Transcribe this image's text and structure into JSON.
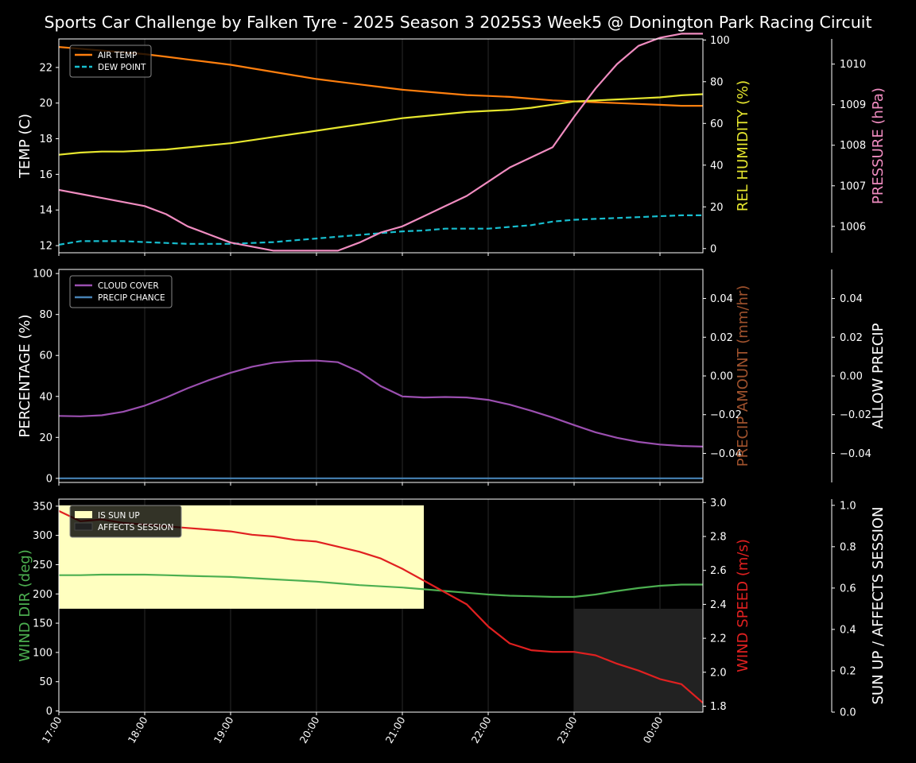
{
  "chart_data": {
    "title": "Sports Car Challenge by Falken Tyre - 2025 Season 3 2025S3 Week5 @ Donington Park Racing Circuit",
    "x_ticks": [
      "17:00",
      "18:00",
      "19:00",
      "20:00",
      "21:00",
      "22:00",
      "23:00",
      "00:00"
    ],
    "x_hours": [
      0,
      0.25,
      0.5,
      0.75,
      1,
      1.25,
      1.5,
      1.75,
      2,
      2.25,
      2.5,
      2.75,
      3,
      3.25,
      3.5,
      3.75,
      4,
      4.25,
      4.5,
      4.75,
      5,
      5.25,
      5.5,
      5.75,
      6,
      6.25,
      6.5,
      6.75,
      7,
      7.25,
      7.5
    ],
    "panels": [
      {
        "id": "temp",
        "type": "line",
        "left_axis": {
          "label": "TEMP (C)",
          "range": [
            11.6,
            23.6
          ],
          "ticks": [
            12,
            14,
            16,
            18,
            20,
            22
          ],
          "color": "#ffffff"
        },
        "right_axis": {
          "label": "REL HUMIDITY (%)",
          "range": [
            -2,
            100.5
          ],
          "ticks": [
            0,
            20,
            40,
            60,
            80,
            100
          ],
          "color": "#e6e62e"
        },
        "far_axis": {
          "label": "PRESSURE (hPa)",
          "range": [
            1005.35,
            1010.62
          ],
          "ticks": [
            1006,
            1007,
            1008,
            1009,
            1010
          ],
          "color": "#f08cc0"
        },
        "legend": {
          "placement": "top-left",
          "entries": [
            {
              "label": "AIR TEMP",
              "color": "#ff7f0e",
              "dash": false
            },
            {
              "label": "DEW POINT",
              "color": "#17becf",
              "dash": true
            }
          ]
        },
        "series": [
          {
            "name": "AIR TEMP",
            "axis": "left",
            "color": "#ff7f0e",
            "dash": false,
            "values": [
              23.15,
              23.05,
              22.95,
              22.85,
              22.75,
              22.6,
              22.45,
              22.3,
              22.15,
              21.95,
              21.75,
              21.55,
              21.35,
              21.2,
              21.05,
              20.9,
              20.75,
              20.65,
              20.55,
              20.45,
              20.4,
              20.35,
              20.25,
              20.15,
              20.1,
              20.05,
              20.0,
              19.95,
              19.9,
              19.85,
              19.85
            ]
          },
          {
            "name": "DEW POINT",
            "axis": "left",
            "color": "#17becf",
            "dash": true,
            "values": [
              12.05,
              12.25,
              12.25,
              12.25,
              12.2,
              12.15,
              12.1,
              12.1,
              12.1,
              12.15,
              12.2,
              12.3,
              12.4,
              12.5,
              12.6,
              12.7,
              12.8,
              12.85,
              12.95,
              12.95,
              12.95,
              13.05,
              13.15,
              13.35,
              13.45,
              13.5,
              13.55,
              13.6,
              13.65,
              13.7,
              13.7
            ]
          },
          {
            "name": "REL HUMIDITY",
            "axis": "right",
            "color": "#e6e62e",
            "dash": false,
            "values": [
              45,
              46,
              46.5,
              46.5,
              47,
              47.5,
              48.5,
              49.5,
              50.5,
              52,
              53.5,
              55,
              56.5,
              58,
              59.5,
              61,
              62.5,
              63.5,
              64.5,
              65.5,
              66,
              66.5,
              67.5,
              69,
              70.5,
              71,
              71.5,
              72,
              72.5,
              73.5,
              74
            ]
          },
          {
            "name": "PRESSURE",
            "axis": "far",
            "color": "#f08cc0",
            "dash": false,
            "values": [
              1006.9,
              1006.8,
              1006.7,
              1006.6,
              1006.5,
              1006.3,
              1006.0,
              1005.8,
              1005.6,
              1005.5,
              1005.4,
              1005.4,
              1005.4,
              1005.4,
              1005.6,
              1005.85,
              1006.0,
              1006.25,
              1006.5,
              1006.75,
              1007.1,
              1007.45,
              1007.7,
              1007.95,
              1008.7,
              1009.4,
              1010.0,
              1010.45,
              1010.65,
              1010.75,
              1010.75
            ]
          }
        ]
      },
      {
        "id": "precip",
        "type": "line",
        "left_axis": {
          "label": "PERCENTAGE (%)",
          "range": [
            -2,
            102
          ],
          "ticks": [
            0,
            20,
            40,
            60,
            80,
            100
          ],
          "color": "#ffffff"
        },
        "right_axis": {
          "label": "PRECIP AMOUNT (mm/hr)",
          "range": [
            -0.055,
            0.055
          ],
          "ticks": [
            -0.04,
            -0.02,
            0.0,
            0.02,
            0.04
          ],
          "tick_labels": [
            "−0.04",
            "−0.02",
            "0.00",
            "0.02",
            "0.04"
          ],
          "color": "#a0522d"
        },
        "far_axis": {
          "label": "ALLOW PRECIP",
          "range": [
            -0.055,
            0.055
          ],
          "ticks": [
            -0.04,
            -0.02,
            0.0,
            0.02,
            0.04
          ],
          "tick_labels": [
            "−0.04",
            "−0.02",
            "0.00",
            "0.02",
            "0.04"
          ],
          "color": "#ffffff"
        },
        "legend": {
          "placement": "top-left",
          "entries": [
            {
              "label": "CLOUD COVER",
              "color": "#9b4fb0",
              "dash": false
            },
            {
              "label": "PRECIP CHANCE",
              "color": "#4682b4",
              "dash": false
            }
          ]
        },
        "series": [
          {
            "name": "CLOUD COVER",
            "axis": "left",
            "color": "#9b4fb0",
            "dash": false,
            "values": [
              30.5,
              30.3,
              30.8,
              32.5,
              35.5,
              39.5,
              44,
              48,
              51.5,
              54.5,
              56.5,
              57.3,
              57.5,
              56.7,
              52,
              45,
              40,
              39.5,
              39.7,
              39.5,
              38.3,
              36,
              33,
              29.7,
              26,
              22.5,
              19.8,
              17.8,
              16.5,
              15.8,
              15.5
            ]
          },
          {
            "name": "PRECIP CHANCE",
            "axis": "left",
            "color": "#4682b4",
            "dash": false,
            "values": [
              0,
              0,
              0,
              0,
              0,
              0,
              0,
              0,
              0,
              0,
              0,
              0,
              0,
              0,
              0,
              0,
              0,
              0,
              0,
              0,
              0,
              0,
              0,
              0,
              0,
              0,
              0,
              0,
              0,
              0,
              0
            ]
          }
        ]
      },
      {
        "id": "wind",
        "type": "line",
        "left_axis": {
          "label": "WIND DIR (deg)",
          "range": [
            -2,
            362
          ],
          "ticks": [
            0,
            50,
            100,
            150,
            200,
            250,
            300,
            350
          ],
          "color": "#4caf50"
        },
        "right_axis": {
          "label": "WIND SPEED (m/s)",
          "range": [
            1.765,
            3.02
          ],
          "ticks": [
            1.8,
            2.0,
            2.2,
            2.4,
            2.6,
            2.8,
            3.0
          ],
          "color": "#e02020"
        },
        "far_axis": {
          "label": "SUN UP / AFFECTS SESSION",
          "range": [
            0,
            1.03
          ],
          "ticks": [
            0,
            0.2,
            0.4,
            0.6,
            0.8,
            1.0
          ],
          "color": "#ffffff"
        },
        "legend": {
          "placement": "top-left",
          "entries": [
            {
              "label": "IS SUN UP",
              "color": "#ffffc0",
              "box": true
            },
            {
              "label": "AFFECTS SESSION",
              "color": "#222222",
              "box": true
            }
          ]
        },
        "shaded": [
          {
            "name": "IS SUN UP",
            "color": "#ffffc0",
            "from_hour": 0,
            "to_hour": 4.25,
            "y_from": 0.5,
            "y_to": 1.0
          },
          {
            "name": "AFFECTS SESSION",
            "color": "#222222",
            "from_hour": 6.0,
            "to_hour": 7.5,
            "y_from": 0.0,
            "y_to": 0.5
          }
        ],
        "series": [
          {
            "name": "WIND DIR",
            "axis": "left",
            "color": "#4caf50",
            "dash": false,
            "values": [
              232,
              232,
              233,
              233,
              233,
              232,
              231,
              230,
              229,
              227,
              225,
              223,
              221,
              218,
              215,
              213,
              211,
              208,
              205,
              202,
              199,
              197,
              196,
              195,
              195,
              199,
              205,
              210,
              214,
              216,
              216
            ]
          },
          {
            "name": "WIND SPEED",
            "axis": "right",
            "color": "#e02020",
            "dash": false,
            "values": [
              2.95,
              2.89,
              2.9,
              2.88,
              2.87,
              2.86,
              2.85,
              2.84,
              2.83,
              2.81,
              2.8,
              2.78,
              2.77,
              2.74,
              2.71,
              2.67,
              2.61,
              2.54,
              2.47,
              2.4,
              2.27,
              2.17,
              2.13,
              2.12,
              2.12,
              2.1,
              2.05,
              2.01,
              1.96,
              1.93,
              1.82
            ]
          }
        ]
      }
    ]
  }
}
